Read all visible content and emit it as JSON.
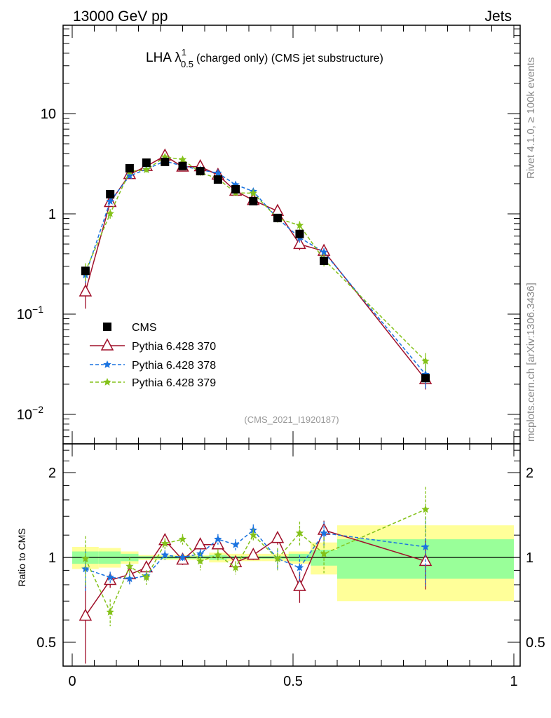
{
  "chart_data": {
    "type": "line",
    "top_left": "13000 GeV pp",
    "top_right": "Jets",
    "title_prefix": "LHA λ",
    "title_sup": "1",
    "title_sub": "0.5",
    "title_suffix": "(charged only) (CMS jet substructure)",
    "analysis_id": "(CMS_2021_I1920187)",
    "side_text_1": "Rivet 4.1.0, ≥ 100k events",
    "side_text_2": "mcplots.cern.ch [arXiv:1306.3436]",
    "ratio_ylabel": "Ratio to CMS",
    "xlim": [
      0,
      1
    ],
    "ylim": [
      0.005,
      76
    ],
    "yscale": "log",
    "ratio_ylim": [
      0.41,
      2.49
    ],
    "x_ticks": [
      "0",
      "0.5",
      "1"
    ],
    "y_ticks": [
      {
        "label": "10",
        "value": 10
      },
      {
        "label": "1",
        "value": 1
      },
      {
        "label": "10",
        "sup": "−1",
        "value": 0.1
      },
      {
        "label": "10",
        "sup": "−2",
        "value": 0.01
      }
    ],
    "ratio_ticks": [
      {
        "label": "2",
        "value": 2
      },
      {
        "label": "1",
        "value": 1
      },
      {
        "label": "0.5",
        "value": 0.5
      }
    ],
    "bin_edges": [
      0,
      0.06,
      0.11,
      0.15,
      0.19,
      0.23,
      0.27,
      0.31,
      0.35,
      0.39,
      0.43,
      0.49,
      0.54,
      0.6,
      1.0
    ],
    "x": [
      0.03,
      0.086,
      0.13,
      0.168,
      0.21,
      0.25,
      0.29,
      0.33,
      0.37,
      0.41,
      0.465,
      0.515,
      0.57,
      0.8
    ],
    "data": {
      "name": "CMS",
      "values": [
        0.27,
        1.57,
        2.85,
        3.24,
        3.3,
        3.0,
        2.67,
        2.2,
        1.76,
        1.34,
        0.91,
        0.63,
        0.34,
        0.023
      ],
      "band_outer": [
        0.09,
        0.08,
        0.05,
        0.02,
        0.02,
        0.02,
        0.02,
        0.04,
        0.03,
        0.03,
        0.03,
        0.05,
        0.13,
        0.3
      ],
      "band_inner": [
        0.05,
        0.05,
        0.03,
        0.01,
        0.01,
        0.01,
        0.01,
        0.02,
        0.01,
        0.01,
        0.01,
        0.03,
        0.065,
        0.16
      ]
    },
    "series": [
      {
        "name": "Pythia 6.428 370",
        "color": "#a0102a",
        "style": "solid",
        "marker": "triangle",
        "ratio": [
          0.62,
          0.83,
          0.87,
          0.92,
          1.15,
          0.98,
          1.11,
          1.11,
          0.96,
          1.02,
          1.17,
          0.79,
          1.25,
          0.97
        ],
        "ratio_err": [
          0.2,
          0.05,
          0.05,
          0.04,
          0.05,
          0.04,
          0.05,
          0.04,
          0.04,
          0.04,
          0.06,
          0.1,
          0.1,
          0.2
        ]
      },
      {
        "name": "Pythia 6.428 378",
        "color": "#1a73e0",
        "style": "dashed",
        "marker": "star",
        "ratio": [
          0.91,
          0.85,
          0.84,
          0.86,
          1.02,
          1.0,
          1.03,
          1.16,
          1.11,
          1.25,
          0.99,
          0.92,
          1.22,
          1.09
        ],
        "ratio_err": [
          0.15,
          0.04,
          0.04,
          0.04,
          0.04,
          0.03,
          0.04,
          0.05,
          0.05,
          0.06,
          0.08,
          0.1,
          0.12,
          0.3
        ]
      },
      {
        "name": "Pythia 6.428 379",
        "color": "#84c21a",
        "style": "dashed",
        "marker": "star",
        "ratio": [
          0.99,
          0.64,
          0.93,
          0.85,
          1.12,
          1.16,
          0.97,
          1.02,
          0.92,
          1.2,
          0.99,
          1.22,
          1.03,
          1.48
        ],
        "ratio_err": [
          0.2,
          0.07,
          0.07,
          0.05,
          0.05,
          0.05,
          0.07,
          0.05,
          0.05,
          0.06,
          0.09,
          0.12,
          0.15,
          0.3
        ]
      }
    ],
    "band_colors": {
      "outer": "#ffff99",
      "inner": "#99ff99"
    },
    "legend_placement": "lower-left"
  }
}
